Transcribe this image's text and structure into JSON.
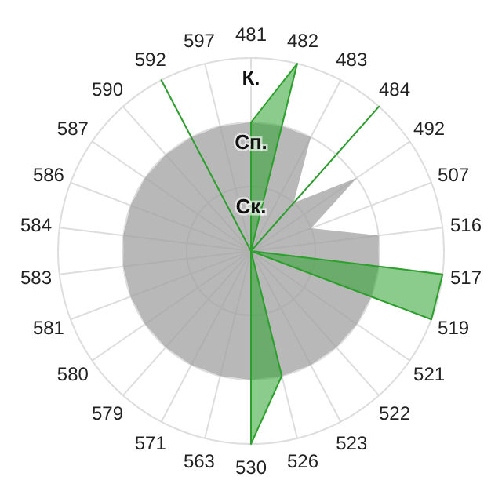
{
  "chart_data": {
    "type": "radar",
    "categories": [
      "481",
      "482",
      "483",
      "484",
      "492",
      "507",
      "516",
      "517",
      "519",
      "521",
      "522",
      "523",
      "526",
      "530",
      "563",
      "571",
      "579",
      "580",
      "581",
      "583",
      "584",
      "586",
      "587",
      "590",
      "592",
      "597"
    ],
    "series": [
      {
        "color": "#a0a0a0",
        "values": [
          2,
          2,
          2,
          1,
          2,
          1,
          2,
          2,
          2,
          2,
          2,
          2,
          2,
          2,
          2,
          2,
          2,
          2,
          2,
          2,
          2,
          2,
          2,
          2,
          2,
          2
        ]
      },
      {
        "color": "#2ca02c",
        "values": [
          2,
          3,
          0,
          3,
          0,
          0,
          0,
          3,
          3,
          0,
          0,
          0,
          2,
          3,
          0,
          0,
          0,
          0,
          0,
          0,
          0,
          0,
          0,
          0,
          3,
          0
        ]
      }
    ],
    "ylim": [
      0,
      3
    ],
    "yticks": [
      {
        "value": 1,
        "label": "Ск."
      },
      {
        "value": 2,
        "label": "Сп."
      },
      {
        "value": 3,
        "label": "К."
      }
    ],
    "grid": true
  }
}
